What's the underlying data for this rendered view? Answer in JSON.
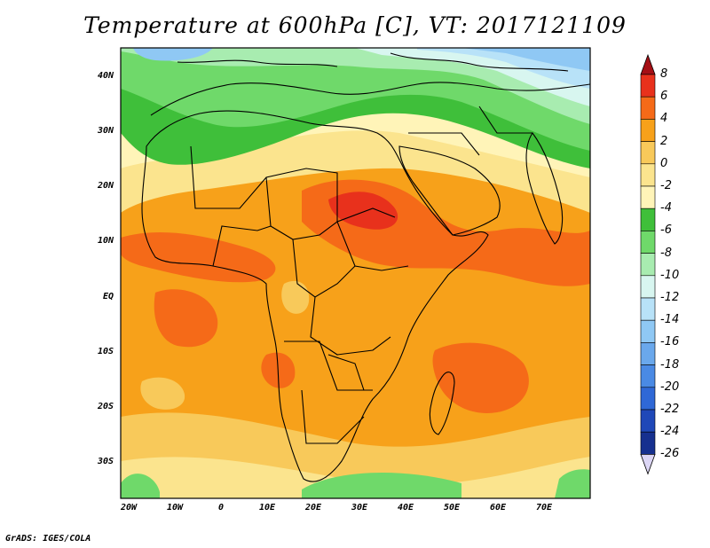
{
  "title": "Temperature at 600hPa [C], VT: 2017121109",
  "footer": "GrADS: IGES/COLA",
  "map": {
    "region": "Africa",
    "variable": "Temperature at 600hPa",
    "units": "C",
    "lon_range": [
      -22,
      80
    ],
    "lat_range": [
      -37,
      45
    ],
    "lat_labels": [
      "40N",
      "30N",
      "20N",
      "10N",
      "EQ",
      "10S",
      "20S",
      "30S"
    ],
    "lon_labels": [
      "20W",
      "10W",
      "0",
      "10E",
      "20E",
      "30E",
      "40E",
      "50E",
      "60E",
      "70E"
    ]
  },
  "colorbar": {
    "labels": [
      "8",
      "6",
      "4",
      "2",
      "0",
      "-2",
      "-4",
      "-6",
      "-8",
      "-10",
      "-12",
      "-14",
      "-16",
      "-18",
      "-20",
      "-22",
      "-24",
      "-26"
    ],
    "colors": [
      "#a50f15",
      "#e8311c",
      "#f56a18",
      "#f7a11a",
      "#f8c95a",
      "#fbe48e",
      "#fff4b8",
      "#3fbf3a",
      "#6fd96a",
      "#a8ecb0",
      "#d8f6f0",
      "#b8e2f8",
      "#8fc8f4",
      "#6aa8ec",
      "#4a8ae4",
      "#2f68d6",
      "#1f48b8",
      "#16308f",
      "#0c1a6a"
    ]
  }
}
